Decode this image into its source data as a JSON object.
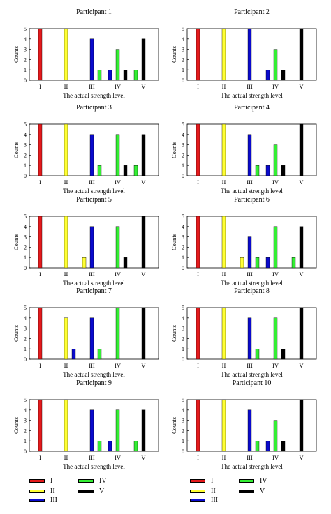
{
  "colors": {
    "I": "#e41a1c",
    "II": "#ffff33",
    "III": "#0a0acd",
    "IV": "#33ee33",
    "V": "#000000"
  },
  "chart_data": [
    {
      "type": "bar",
      "title": "Participant 1",
      "xlabel": "The actual strength level",
      "ylabel": "Counts",
      "categories": [
        "I",
        "II",
        "III",
        "IV",
        "V"
      ],
      "ylim": [
        0,
        5
      ],
      "yticks": [
        0,
        1,
        2,
        3,
        4,
        5
      ],
      "grid": false,
      "series": [
        {
          "name": "I",
          "values": [
            5,
            0,
            0,
            0,
            0
          ]
        },
        {
          "name": "II",
          "values": [
            0,
            5,
            0,
            0,
            0
          ]
        },
        {
          "name": "III",
          "values": [
            0,
            0,
            4,
            1,
            0
          ]
        },
        {
          "name": "IV",
          "values": [
            0,
            0,
            1,
            3,
            1
          ]
        },
        {
          "name": "V",
          "values": [
            0,
            0,
            0,
            1,
            4
          ]
        }
      ]
    },
    {
      "type": "bar",
      "title": "Participant 2",
      "xlabel": "The actual strength level",
      "ylabel": "Counts",
      "categories": [
        "I",
        "II",
        "III",
        "IV",
        "V"
      ],
      "ylim": [
        0,
        5
      ],
      "yticks": [
        0,
        1,
        2,
        3,
        4,
        5
      ],
      "grid": false,
      "series": [
        {
          "name": "I",
          "values": [
            5,
            0,
            0,
            0,
            0
          ]
        },
        {
          "name": "II",
          "values": [
            0,
            5,
            0,
            0,
            0
          ]
        },
        {
          "name": "III",
          "values": [
            0,
            0,
            5,
            1,
            0
          ]
        },
        {
          "name": "IV",
          "values": [
            0,
            0,
            0,
            3,
            0
          ]
        },
        {
          "name": "V",
          "values": [
            0,
            0,
            0,
            1,
            5
          ]
        }
      ]
    },
    {
      "type": "bar",
      "title": "Participant 3",
      "xlabel": "The actual strength level",
      "ylabel": "Counts",
      "categories": [
        "I",
        "II",
        "III",
        "IV",
        "V"
      ],
      "ylim": [
        0,
        5
      ],
      "yticks": [
        0,
        1,
        2,
        3,
        4,
        5
      ],
      "grid": false,
      "series": [
        {
          "name": "I",
          "values": [
            5,
            0,
            0,
            0,
            0
          ]
        },
        {
          "name": "II",
          "values": [
            0,
            5,
            0,
            0,
            0
          ]
        },
        {
          "name": "III",
          "values": [
            0,
            0,
            4,
            0,
            0
          ]
        },
        {
          "name": "IV",
          "values": [
            0,
            0,
            1,
            4,
            1
          ]
        },
        {
          "name": "V",
          "values": [
            0,
            0,
            0,
            1,
            4
          ]
        }
      ]
    },
    {
      "type": "bar",
      "title": "Participant  4",
      "xlabel": "The actual strength level",
      "ylabel": "Counts",
      "categories": [
        "I",
        "II",
        "III",
        "IV",
        "V"
      ],
      "ylim": [
        0,
        5
      ],
      "yticks": [
        0,
        1,
        2,
        3,
        4,
        5
      ],
      "grid": false,
      "series": [
        {
          "name": "I",
          "values": [
            5,
            0,
            0,
            0,
            0
          ]
        },
        {
          "name": "II",
          "values": [
            0,
            5,
            0,
            0,
            0
          ]
        },
        {
          "name": "III",
          "values": [
            0,
            0,
            4,
            1,
            0
          ]
        },
        {
          "name": "IV",
          "values": [
            0,
            0,
            1,
            3,
            0
          ]
        },
        {
          "name": "V",
          "values": [
            0,
            0,
            0,
            1,
            5
          ]
        }
      ]
    },
    {
      "type": "bar",
      "title": "Participant 5",
      "xlabel": "The actual strength level",
      "ylabel": "Counts",
      "categories": [
        "I",
        "II",
        "III",
        "IV",
        "V"
      ],
      "ylim": [
        0,
        5
      ],
      "yticks": [
        0,
        1,
        2,
        3,
        4,
        5
      ],
      "grid": false,
      "series": [
        {
          "name": "I",
          "values": [
            5,
            0,
            0,
            0,
            0
          ]
        },
        {
          "name": "II",
          "values": [
            0,
            5,
            1,
            0,
            0
          ]
        },
        {
          "name": "III",
          "values": [
            0,
            0,
            4,
            0,
            0
          ]
        },
        {
          "name": "IV",
          "values": [
            0,
            0,
            0,
            4,
            0
          ]
        },
        {
          "name": "V",
          "values": [
            0,
            0,
            0,
            1,
            5
          ]
        }
      ]
    },
    {
      "type": "bar",
      "title": "Participant 6",
      "xlabel": "The actual strength level",
      "ylabel": "Counts",
      "categories": [
        "I",
        "II",
        "III",
        "IV",
        "V"
      ],
      "ylim": [
        0,
        5
      ],
      "yticks": [
        0,
        1,
        2,
        3,
        4,
        5
      ],
      "grid": false,
      "series": [
        {
          "name": "I",
          "values": [
            5,
            0,
            0,
            0,
            0
          ]
        },
        {
          "name": "II",
          "values": [
            0,
            5,
            1,
            0,
            0
          ]
        },
        {
          "name": "III",
          "values": [
            0,
            0,
            3,
            1,
            0
          ]
        },
        {
          "name": "IV",
          "values": [
            0,
            0,
            1,
            4,
            1
          ]
        },
        {
          "name": "V",
          "values": [
            0,
            0,
            0,
            0,
            4
          ]
        }
      ]
    },
    {
      "type": "bar",
      "title": "Participant 7",
      "xlabel": "The actual strength level",
      "ylabel": "Counts",
      "categories": [
        "I",
        "II",
        "III",
        "IV",
        "V"
      ],
      "ylim": [
        0,
        5
      ],
      "yticks": [
        0,
        1,
        2,
        3,
        4,
        5
      ],
      "grid": false,
      "series": [
        {
          "name": "I",
          "values": [
            5,
            0,
            0,
            0,
            0
          ]
        },
        {
          "name": "II",
          "values": [
            0,
            4,
            0,
            0,
            0
          ]
        },
        {
          "name": "III",
          "values": [
            0,
            1,
            4,
            0,
            0
          ]
        },
        {
          "name": "IV",
          "values": [
            0,
            0,
            1,
            5,
            0
          ]
        },
        {
          "name": "V",
          "values": [
            0,
            0,
            0,
            0,
            5
          ]
        }
      ]
    },
    {
      "type": "bar",
      "title": "Participant 8",
      "xlabel": "The actual strength level",
      "ylabel": "Counts",
      "categories": [
        "I",
        "II",
        "III",
        "IV",
        "V"
      ],
      "ylim": [
        0,
        5
      ],
      "yticks": [
        0,
        1,
        2,
        3,
        4,
        5
      ],
      "grid": false,
      "series": [
        {
          "name": "I",
          "values": [
            5,
            0,
            0,
            0,
            0
          ]
        },
        {
          "name": "II",
          "values": [
            0,
            5,
            0,
            0,
            0
          ]
        },
        {
          "name": "III",
          "values": [
            0,
            0,
            4,
            0,
            0
          ]
        },
        {
          "name": "IV",
          "values": [
            0,
            0,
            1,
            4,
            0
          ]
        },
        {
          "name": "V",
          "values": [
            0,
            0,
            0,
            1,
            5
          ]
        }
      ]
    },
    {
      "type": "bar",
      "title": "Participant 9",
      "xlabel": "The actual strength level",
      "ylabel": "Counts",
      "categories": [
        "I",
        "II",
        "III",
        "IV",
        "V"
      ],
      "ylim": [
        0,
        5
      ],
      "yticks": [
        0,
        1,
        2,
        3,
        4,
        5
      ],
      "grid": false,
      "series": [
        {
          "name": "I",
          "values": [
            5,
            0,
            0,
            0,
            0
          ]
        },
        {
          "name": "II",
          "values": [
            0,
            5,
            0,
            0,
            0
          ]
        },
        {
          "name": "III",
          "values": [
            0,
            0,
            4,
            1,
            0
          ]
        },
        {
          "name": "IV",
          "values": [
            0,
            0,
            1,
            4,
            1
          ]
        },
        {
          "name": "V",
          "values": [
            0,
            0,
            0,
            0,
            4
          ]
        }
      ]
    },
    {
      "type": "bar",
      "title": "Participant 10",
      "xlabel": "The actual strength level",
      "ylabel": "Counts",
      "categories": [
        "I",
        "II",
        "III",
        "IV",
        "V"
      ],
      "ylim": [
        0,
        5
      ],
      "yticks": [
        0,
        1,
        2,
        3,
        4,
        5
      ],
      "grid": false,
      "series": [
        {
          "name": "I",
          "values": [
            5,
            0,
            0,
            0,
            0
          ]
        },
        {
          "name": "II",
          "values": [
            0,
            5,
            0,
            0,
            0
          ]
        },
        {
          "name": "III",
          "values": [
            0,
            0,
            4,
            1,
            0
          ]
        },
        {
          "name": "IV",
          "values": [
            0,
            0,
            1,
            3,
            0
          ]
        },
        {
          "name": "V",
          "values": [
            0,
            0,
            0,
            1,
            5
          ]
        }
      ]
    }
  ],
  "legend": {
    "left": [
      {
        "key": "I",
        "label": "I"
      },
      {
        "key": "II",
        "label": "II"
      },
      {
        "key": "III",
        "label": "III"
      },
      {
        "key": "IV",
        "label": "IV"
      },
      {
        "key": "V",
        "label": "V"
      }
    ],
    "right": [
      {
        "key": "I",
        "label": "I"
      },
      {
        "key": "II",
        "label": "II"
      },
      {
        "key": "III",
        "label": "III"
      },
      {
        "key": "IV",
        "label": "IV"
      },
      {
        "key": "V",
        "label": "V"
      }
    ]
  }
}
